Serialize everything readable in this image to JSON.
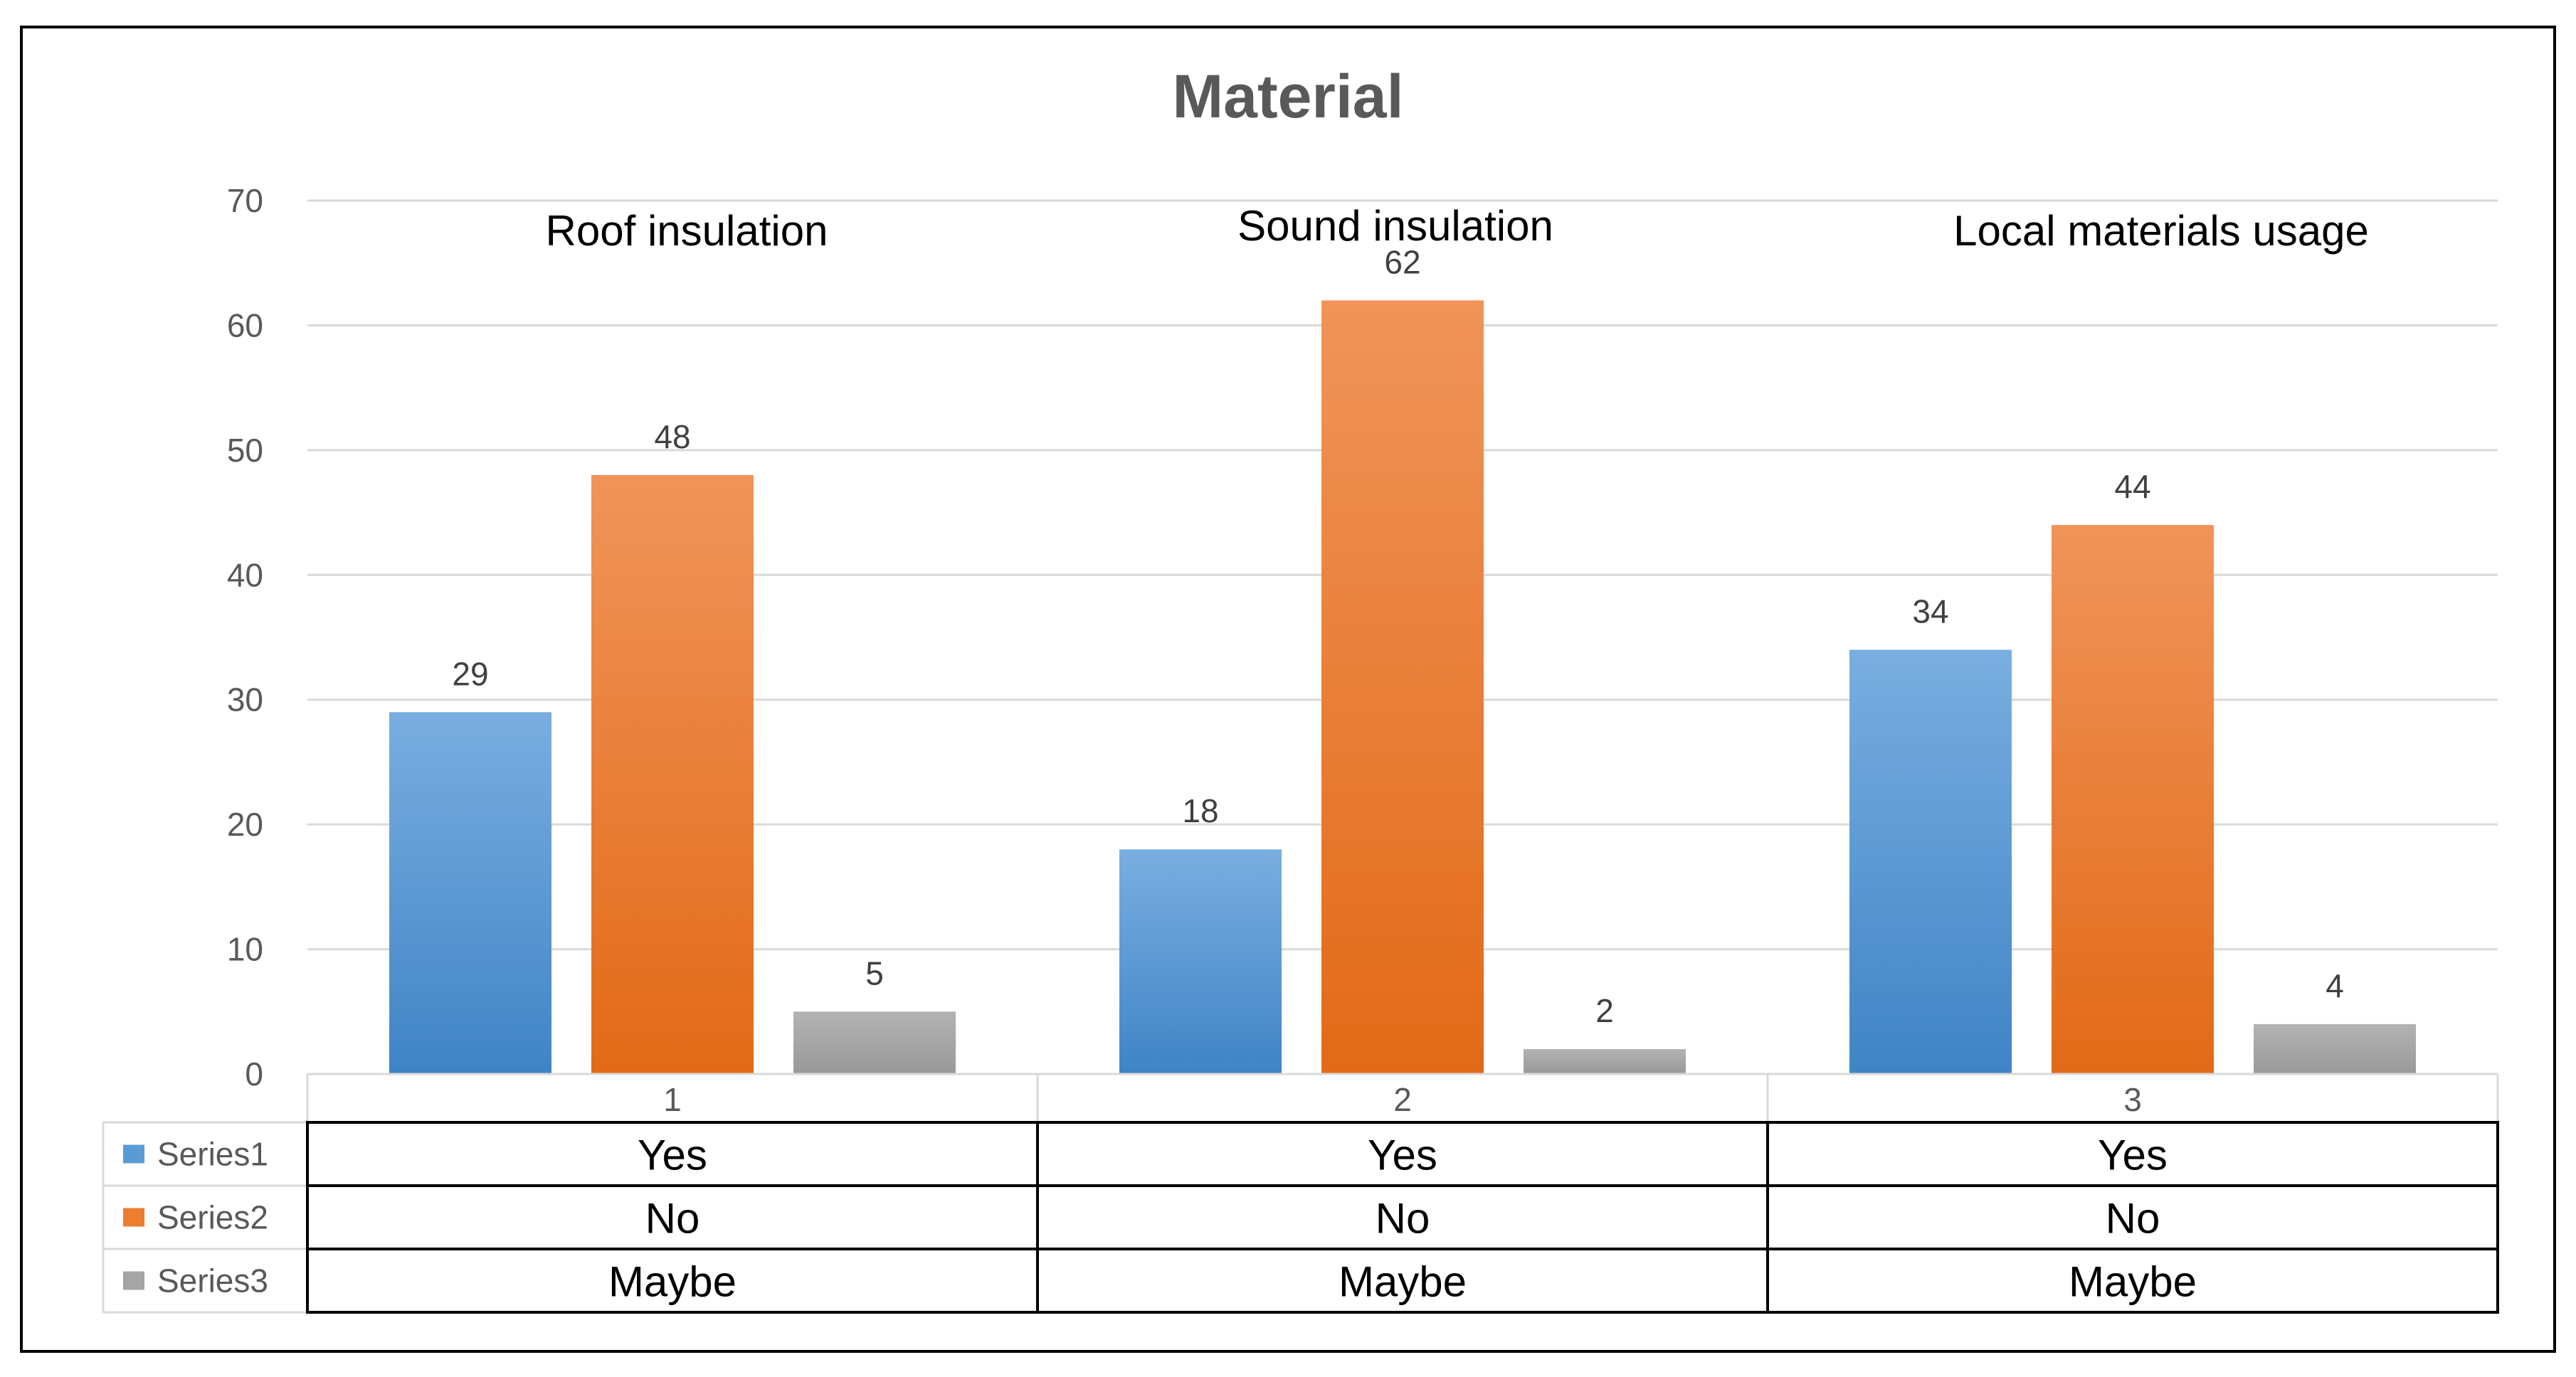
{
  "colors": {
    "series1": "#5b9bd5",
    "series1_light": "#7aaee0",
    "series1_dark": "#3f84c6",
    "series2": "#ed7d31",
    "series2_light": "#f0945a",
    "series2_dark": "#e26a17",
    "series3": "#a5a5a5",
    "series3_light": "#b3b3b3",
    "series3_dark": "#999999",
    "grid": "#d9d9d9",
    "axis_text": "#595959",
    "title_text": "#595959",
    "border": "#000000"
  },
  "chart_data": {
    "type": "bar",
    "title": "Material",
    "categories": [
      "1",
      "2",
      "3"
    ],
    "group_labels": [
      "Roof insulation",
      "Sound insulation",
      "Local materials usage"
    ],
    "series": [
      {
        "name": "Series1",
        "values": [
          29,
          18,
          34
        ],
        "table_row": [
          "Yes",
          "Yes",
          "Yes"
        ]
      },
      {
        "name": "Series2",
        "values": [
          48,
          62,
          44
        ],
        "table_row": [
          "No",
          "No",
          "No"
        ]
      },
      {
        "name": "Series3",
        "values": [
          5,
          2,
          4
        ],
        "table_row": [
          "Maybe",
          "Maybe",
          "Maybe"
        ]
      }
    ],
    "yticks": [
      "0",
      "10",
      "20",
      "30",
      "40",
      "50",
      "60",
      "70"
    ],
    "ylim": [
      0,
      70
    ],
    "xlabel": "",
    "ylabel": "",
    "grid": true,
    "legend": "bottom-left data table"
  }
}
